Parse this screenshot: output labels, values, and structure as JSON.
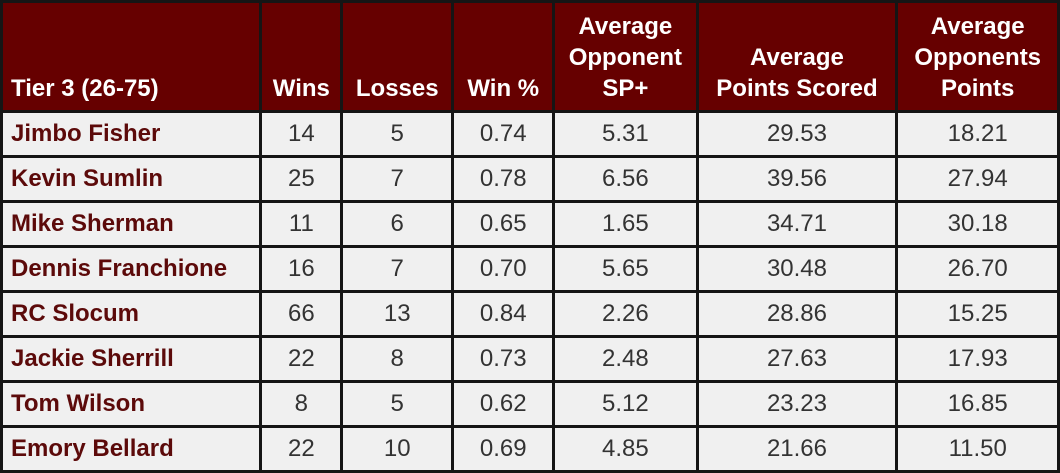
{
  "table": {
    "header": [
      [
        "Tier 3 (26-75)"
      ],
      [
        "Wins"
      ],
      [
        "Losses"
      ],
      [
        "Win %"
      ],
      [
        "Average",
        "Opponent",
        "SP+"
      ],
      [
        "Average",
        "Points Scored"
      ],
      [
        "Average",
        "Opponents",
        "Points"
      ]
    ],
    "rows": [
      [
        "Jimbo Fisher",
        "14",
        "5",
        "0.74",
        "5.31",
        "29.53",
        "18.21"
      ],
      [
        "Kevin Sumlin",
        "25",
        "7",
        "0.78",
        "6.56",
        "39.56",
        "27.94"
      ],
      [
        "Mike Sherman",
        "11",
        "6",
        "0.65",
        "1.65",
        "34.71",
        "30.18"
      ],
      [
        "Dennis Franchione",
        "16",
        "7",
        "0.70",
        "5.65",
        "30.48",
        "26.70"
      ],
      [
        "RC Slocum",
        "66",
        "13",
        "0.84",
        "2.26",
        "28.86",
        "15.25"
      ],
      [
        "Jackie Sherrill",
        "22",
        "8",
        "0.73",
        "2.48",
        "27.63",
        "17.93"
      ],
      [
        "Tom Wilson",
        "8",
        "5",
        "0.62",
        "5.12",
        "23.23",
        "16.85"
      ],
      [
        "Emory Bellard",
        "22",
        "10",
        "0.69",
        "4.85",
        "21.66",
        "11.50"
      ]
    ]
  }
}
